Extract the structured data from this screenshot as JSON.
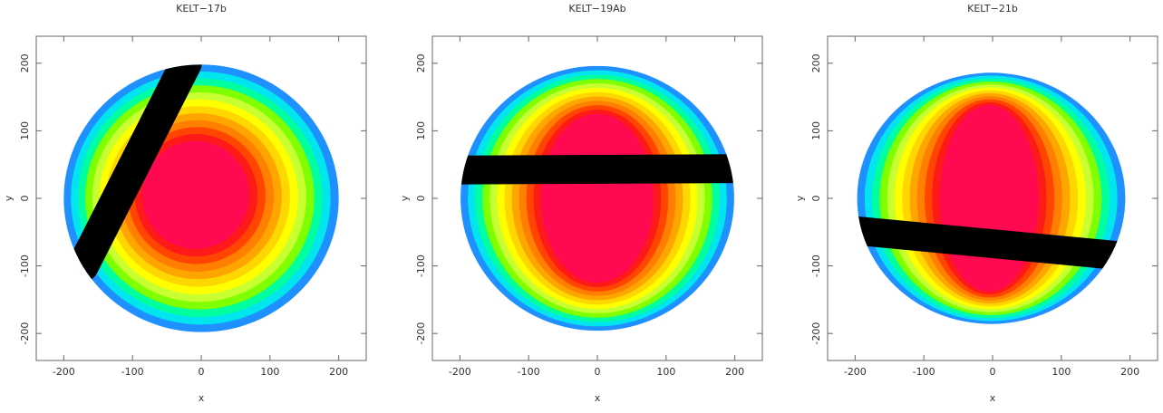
{
  "chart_data": [
    {
      "type": "contour",
      "title": "KELT−17b",
      "xlabel": "x",
      "ylabel": "y",
      "xlim": [
        -240,
        240
      ],
      "ylim": [
        -240,
        240
      ],
      "xticks": [
        -200,
        -100,
        0,
        100,
        200
      ],
      "yticks": [
        -200,
        -100,
        0,
        100,
        200
      ],
      "star": {
        "cx": 0,
        "cy": 0,
        "rx": 200,
        "ry": 198
      },
      "core": {
        "cx": -8,
        "cy": 5,
        "rx": 78,
        "ry": 80
      },
      "chord": {
        "x": [
          -22,
          -172
        ],
        "y": [
          200,
          -100
        ],
        "width": 46
      },
      "colors": [
        "#1e90ff",
        "#00e5ee",
        "#00ff9f",
        "#7fff00",
        "#c8ff30",
        "#ffff00",
        "#ffd700",
        "#ffa500",
        "#ff7f00",
        "#ff4500",
        "#ff1a1a",
        "#ff0a50"
      ]
    },
    {
      "type": "contour",
      "title": "KELT−19Ab",
      "xlabel": "x",
      "ylabel": "y",
      "xlim": [
        -240,
        240
      ],
      "ylim": [
        -240,
        240
      ],
      "xticks": [
        -200,
        -100,
        0,
        100,
        200
      ],
      "yticks": [
        -200,
        -100,
        0,
        100,
        200
      ],
      "star": {
        "cx": 0,
        "cy": 0,
        "rx": 199,
        "ry": 196
      },
      "core": {
        "cx": 0,
        "cy": 0,
        "rx": 82,
        "ry": 125
      },
      "chord": {
        "x": [
          -200,
          200
        ],
        "y": [
          42,
          44
        ],
        "width": 42
      },
      "colors": [
        "#1e90ff",
        "#00e5ee",
        "#00ff9f",
        "#7fff00",
        "#c8ff30",
        "#ffff00",
        "#ffd700",
        "#ffa500",
        "#ff7f00",
        "#ff4500",
        "#ff1a1a",
        "#ff0a50"
      ]
    },
    {
      "type": "contour",
      "title": "KELT−21b",
      "xlabel": "x",
      "ylabel": "y",
      "xlim": [
        -240,
        240
      ],
      "ylim": [
        -240,
        240
      ],
      "xticks": [
        -200,
        -100,
        0,
        100,
        200
      ],
      "yticks": [
        -200,
        -100,
        0,
        100,
        200
      ],
      "star": {
        "cx": -2,
        "cy": 0,
        "rx": 195,
        "ry": 186
      },
      "core": {
        "cx": -5,
        "cy": 0,
        "rx": 72,
        "ry": 138
      },
      "chord": {
        "x": [
          -198,
          185
        ],
        "y": [
          -48,
          -85
        ],
        "width": 42
      },
      "colors": [
        "#1e90ff",
        "#00e5ee",
        "#00ff9f",
        "#7fff00",
        "#c8ff30",
        "#ffff00",
        "#ffd700",
        "#ffa500",
        "#ff7f00",
        "#ff4500",
        "#ff1a1a",
        "#ff0a50"
      ]
    }
  ]
}
